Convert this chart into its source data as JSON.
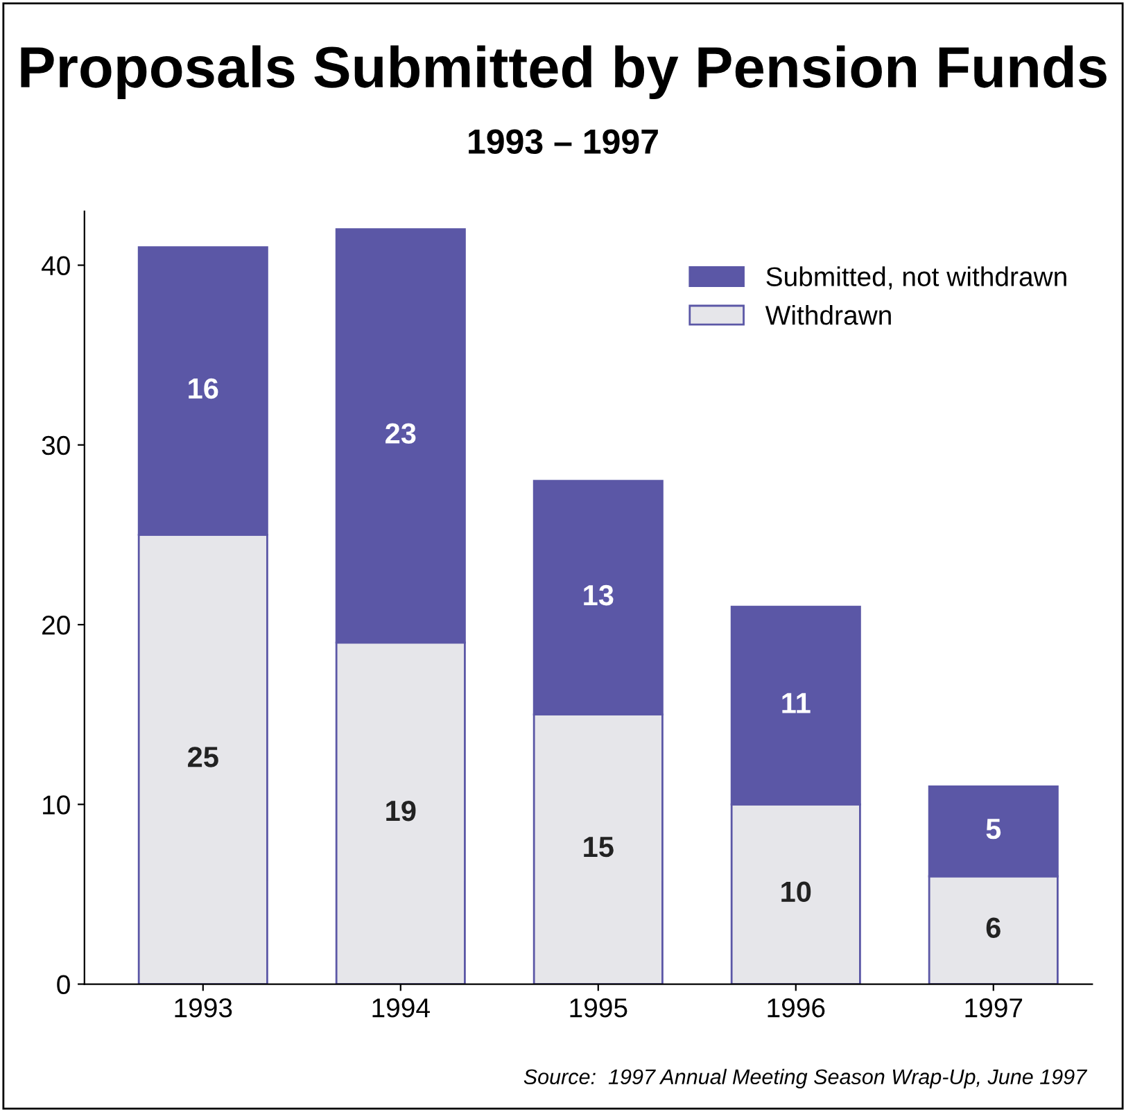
{
  "chart_data": {
    "type": "bar",
    "title": "Proposals Submitted by Pension Funds",
    "subtitle": "1993 – 1997",
    "categories": [
      "1993",
      "1994",
      "1995",
      "1996",
      "1997"
    ],
    "series": [
      {
        "name": "Withdrawn",
        "color": "#e6e6ea",
        "values": [
          25,
          19,
          15,
          10,
          6
        ]
      },
      {
        "name": "Submitted, not withdrawn",
        "color": "#5b57a6",
        "values": [
          16,
          23,
          13,
          11,
          5
        ]
      }
    ],
    "stacked": true,
    "data_labels": true,
    "ylim": [
      0,
      43
    ],
    "yticks": [
      0,
      10,
      20,
      30,
      40
    ],
    "grid": false,
    "legend": "top right",
    "annotations": [
      "Source:  1997 Annual Meeting Season Wrap-Up, June 1997"
    ]
  }
}
